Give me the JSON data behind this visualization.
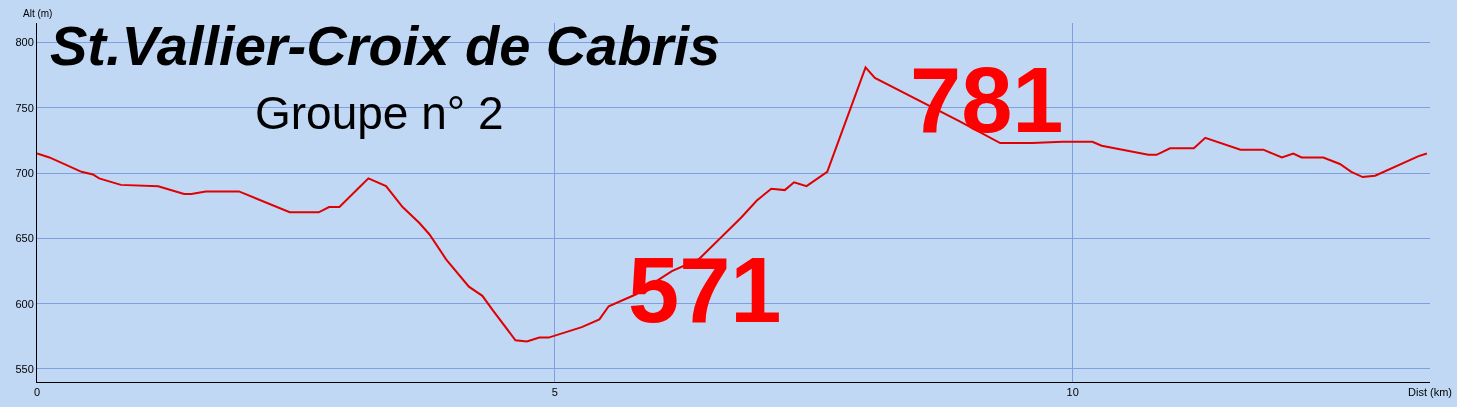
{
  "chart_data": {
    "type": "line",
    "title": "St.Vallier-Croix de Cabris",
    "subtitle": "Groupe n° 2",
    "xlabel": "Dist (km)",
    "ylabel": "Alt (m)",
    "x": [
      0,
      0.12,
      0.43,
      0.54,
      0.6,
      0.81,
      1.17,
      1.42,
      1.49,
      1.63,
      1.95,
      2.44,
      2.72,
      2.82,
      2.92,
      3.11,
      3.2,
      3.37,
      3.53,
      3.69,
      3.79,
      3.95,
      4.17,
      4.3,
      4.4,
      4.62,
      4.73,
      4.85,
      4.94,
      5.26,
      5.43,
      5.52,
      5.78,
      6.13,
      6.39,
      6.8,
      6.95,
      7.09,
      7.22,
      7.31,
      7.43,
      7.63,
      8.0,
      8.09,
      8.9,
      9.3,
      9.61,
      9.9,
      10.19,
      10.28,
      10.73,
      10.81,
      10.94,
      11.17,
      11.28,
      11.62,
      11.84,
      12.02,
      12.13,
      12.21,
      12.42,
      12.58,
      12.69,
      12.8,
      12.92,
      13.34,
      13.42
    ],
    "series": [
      {
        "color": "#e00000",
        "values": [
          715,
          712,
          701,
          699,
          696,
          691,
          690,
          684,
          684,
          686,
          686,
          670,
          670,
          674,
          674,
          689,
          696,
          690,
          674,
          662,
          653,
          634,
          613,
          606,
          595,
          572,
          571,
          574,
          574,
          582,
          588,
          598,
          607,
          625,
          634,
          666,
          679,
          688,
          687,
          693,
          690,
          701,
          781,
          773,
          740,
          723,
          723,
          724,
          724,
          721,
          714,
          714,
          719,
          719,
          727,
          718,
          718,
          712,
          715,
          712,
          712,
          707,
          701,
          697,
          698,
          713,
          715
        ]
      }
    ],
    "annotations": [
      {
        "text": "571",
        "x": 4.73,
        "y": 571
      },
      {
        "text": "781",
        "x": 8.0,
        "y": 781
      }
    ],
    "xlim": [
      0,
      13.45
    ],
    "ylim": [
      540,
      815
    ],
    "xticks": [
      0,
      5,
      10
    ],
    "yticks": [
      550,
      600,
      650,
      700,
      750,
      800
    ],
    "grid": true,
    "marker": "none",
    "line_style": "solid"
  }
}
